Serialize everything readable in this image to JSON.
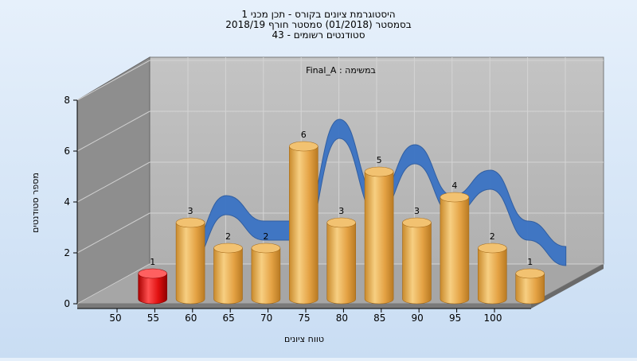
{
  "chart_data": {
    "type": "bar",
    "title_lines": [
      "היסטוגרמת ציונים בקורס - תכן מכני 1",
      "בסמסטר  (01/2018)  סמסטר חורף 2018/19",
      "סטודנטים רשומים - 43"
    ],
    "series_label": "במשימה : Final_A",
    "xlabel": "טווח ציונים",
    "ylabel": "מספר סטודנטים",
    "x_ticks": [
      "50",
      "55",
      "60",
      "65",
      "70",
      "75",
      "80",
      "85",
      "90",
      "95",
      "100"
    ],
    "y_ticks": [
      0,
      2,
      4,
      6,
      8
    ],
    "ylim": [
      0,
      8
    ],
    "bars": [
      {
        "x_start": 50,
        "x_end": 55,
        "value": 1,
        "label": "1",
        "highlight": true
      },
      {
        "x_start": 55,
        "x_end": 60,
        "value": 3,
        "label": "3"
      },
      {
        "x_start": 60,
        "x_end": 65,
        "value": 2,
        "label": "2"
      },
      {
        "x_start": 65,
        "x_end": 70,
        "value": 2,
        "label": "2"
      },
      {
        "x_start": 70,
        "x_end": 75,
        "value": 6,
        "label": "6"
      },
      {
        "x_start": 75,
        "x_end": 80,
        "value": 3,
        "label": "3"
      },
      {
        "x_start": 80,
        "x_end": 85,
        "value": 5,
        "label": "5"
      },
      {
        "x_start": 85,
        "x_end": 90,
        "value": 3,
        "label": "3"
      },
      {
        "x_start": 90,
        "x_end": 95,
        "value": 4,
        "label": "4"
      },
      {
        "x_start": 95,
        "x_end": 100,
        "value": 2,
        "label": "2"
      },
      {
        "x_start": 100,
        "x_end": 105,
        "value": 1,
        "label": "1"
      }
    ],
    "colors": {
      "bar": "#e8a84a",
      "bar_highlight": "#e01010",
      "ribbon": "#3a73c4",
      "back_wall": "#bcbcbc",
      "side_wall": "#8c8c8c",
      "floor": "#a8a8a8"
    },
    "grid": true,
    "legend": "none"
  }
}
